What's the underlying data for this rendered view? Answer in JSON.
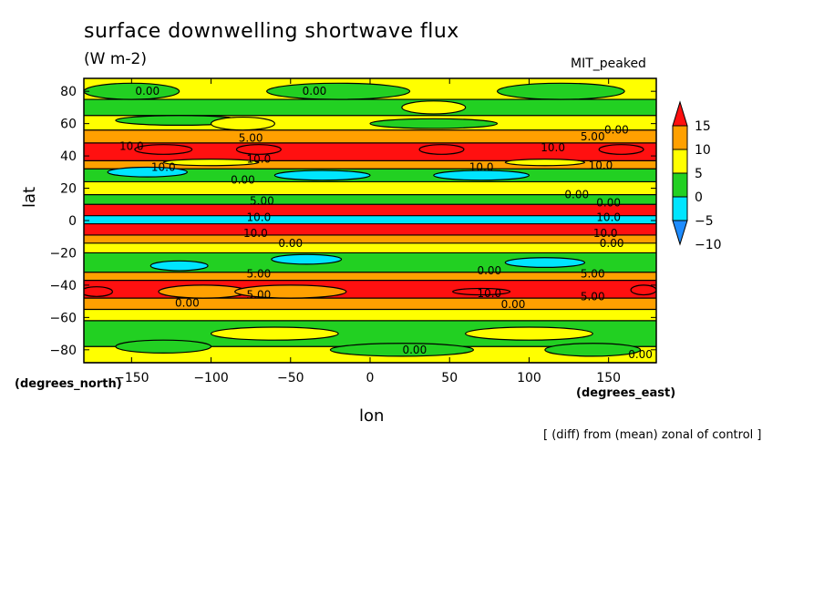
{
  "chart_data": {
    "type": "heatmap",
    "title": "surface downwelling shortwave flux",
    "units": "(W m-2)",
    "model_label": "MIT_peaked",
    "xlabel": "lon",
    "ylabel": "lat",
    "x_unit_label": "(degrees_east)",
    "y_unit_label": "(degrees_north)",
    "footnote": "[ (diff) from (mean) zonal of control ]",
    "xlim": [
      -180,
      180
    ],
    "ylim": [
      -88,
      88
    ],
    "x_ticks": [
      -150,
      -100,
      -50,
      0,
      50,
      100,
      150
    ],
    "y_ticks": [
      -80,
      -60,
      -40,
      -20,
      0,
      20,
      40,
      60,
      80
    ],
    "colorbar": {
      "levels": [
        -10,
        -5,
        0,
        5,
        10,
        15
      ],
      "colors": [
        "#1e8cff",
        "#00e5ff",
        "#22d022",
        "#ffff00",
        "#ffa000",
        "#ff1010"
      ]
    },
    "bands": [
      {
        "lat": [
          75,
          88
        ],
        "value": 0
      },
      {
        "lat": [
          65,
          75
        ],
        "value": -3
      },
      {
        "lat": [
          56,
          65
        ],
        "value": 0
      },
      {
        "lat": [
          48,
          56
        ],
        "value": 5
      },
      {
        "lat": [
          37,
          48
        ],
        "value": 10
      },
      {
        "lat": [
          32,
          37
        ],
        "value": 5
      },
      {
        "lat": [
          24,
          32
        ],
        "value": -3
      },
      {
        "lat": [
          16,
          24
        ],
        "value": 0
      },
      {
        "lat": [
          10,
          16
        ],
        "value": -3
      },
      {
        "lat": [
          3,
          10
        ],
        "value": 15
      },
      {
        "lat": [
          -2,
          3
        ],
        "value": -10
      },
      {
        "lat": [
          -9,
          -2
        ],
        "value": 15
      },
      {
        "lat": [
          -14,
          -9
        ],
        "value": 5
      },
      {
        "lat": [
          -20,
          -14
        ],
        "value": 0
      },
      {
        "lat": [
          -32,
          -20
        ],
        "value": -3
      },
      {
        "lat": [
          -37,
          -32
        ],
        "value": 5
      },
      {
        "lat": [
          -48,
          -37
        ],
        "value": 10
      },
      {
        "lat": [
          -55,
          -48
        ],
        "value": 5
      },
      {
        "lat": [
          -62,
          -55
        ],
        "value": 0
      },
      {
        "lat": [
          -78,
          -62
        ],
        "value": -3
      },
      {
        "lat": [
          -88,
          -78
        ],
        "value": 0
      }
    ],
    "blobs": [
      {
        "lon": -130,
        "lat": 44,
        "rx": 18,
        "ry": 3,
        "value": 15
      },
      {
        "lon": -70,
        "lat": 44,
        "rx": 14,
        "ry": 3,
        "value": 15
      },
      {
        "lon": 45,
        "lat": 44,
        "rx": 14,
        "ry": 3,
        "value": 15
      },
      {
        "lon": 158,
        "lat": 44,
        "rx": 14,
        "ry": 3,
        "value": 15
      },
      {
        "lon": -172,
        "lat": -44,
        "rx": 10,
        "ry": 3,
        "value": 15
      },
      {
        "lon": 70,
        "lat": -44,
        "rx": 18,
        "ry": 2,
        "value": 15
      },
      {
        "lon": 172,
        "lat": -43,
        "rx": 8,
        "ry": 3,
        "value": 15
      },
      {
        "lon": -105,
        "lat": -44,
        "rx": 28,
        "ry": 4,
        "value": 5
      },
      {
        "lon": -50,
        "lat": -44,
        "rx": 35,
        "ry": 4,
        "value": 5
      },
      {
        "lon": -140,
        "lat": 30,
        "rx": 25,
        "ry": 3,
        "value": -10
      },
      {
        "lon": -30,
        "lat": 28,
        "rx": 30,
        "ry": 3,
        "value": -10
      },
      {
        "lon": 70,
        "lat": 28,
        "rx": 30,
        "ry": 3,
        "value": -10
      },
      {
        "lon": 110,
        "lat": 36,
        "rx": 25,
        "ry": 2,
        "value": 0
      },
      {
        "lon": -100,
        "lat": 36,
        "rx": 30,
        "ry": 2,
        "value": 0
      },
      {
        "lon": -120,
        "lat": -28,
        "rx": 18,
        "ry": 3,
        "value": -10
      },
      {
        "lon": -40,
        "lat": -24,
        "rx": 22,
        "ry": 3,
        "value": -10
      },
      {
        "lon": 110,
        "lat": -26,
        "rx": 25,
        "ry": 3,
        "value": -10
      },
      {
        "lon": -150,
        "lat": 80,
        "rx": 30,
        "ry": 5,
        "value": -3
      },
      {
        "lon": -20,
        "lat": 80,
        "rx": 45,
        "ry": 5,
        "value": -3
      },
      {
        "lon": 120,
        "lat": 80,
        "rx": 40,
        "ry": 5,
        "value": -3
      },
      {
        "lon": -120,
        "lat": 62,
        "rx": 40,
        "ry": 3,
        "value": -3
      },
      {
        "lon": 40,
        "lat": 60,
        "rx": 40,
        "ry": 3,
        "value": -3
      },
      {
        "lon": -80,
        "lat": 60,
        "rx": 20,
        "ry": 4,
        "value": 0
      },
      {
        "lon": 40,
        "lat": 70,
        "rx": 20,
        "ry": 4,
        "value": 0
      },
      {
        "lon": -130,
        "lat": -78,
        "rx": 30,
        "ry": 4,
        "value": -3
      },
      {
        "lon": 20,
        "lat": -80,
        "rx": 45,
        "ry": 4,
        "value": -3
      },
      {
        "lon": 140,
        "lat": -80,
        "rx": 30,
        "ry": 4,
        "value": -3
      },
      {
        "lon": 100,
        "lat": -70,
        "rx": 40,
        "ry": 4,
        "value": 0
      },
      {
        "lon": -60,
        "lat": -70,
        "rx": 40,
        "ry": 4,
        "value": 0
      }
    ],
    "contour_labels": [
      {
        "text": "0.00",
        "lon": -140,
        "lat": 80
      },
      {
        "text": "0.00",
        "lon": -35,
        "lat": 80
      },
      {
        "text": "5.00",
        "lon": -75,
        "lat": 51
      },
      {
        "text": "5.00",
        "lon": 140,
        "lat": 52
      },
      {
        "text": "0.00",
        "lon": 155,
        "lat": 56
      },
      {
        "text": "10.0",
        "lon": -150,
        "lat": 46
      },
      {
        "text": "10.0",
        "lon": 115,
        "lat": 45
      },
      {
        "text": "10.0",
        "lon": -130,
        "lat": 33
      },
      {
        "text": "10.0",
        "lon": -70,
        "lat": 38
      },
      {
        "text": "10.0",
        "lon": 70,
        "lat": 33
      },
      {
        "text": "10.0",
        "lon": 145,
        "lat": 34
      },
      {
        "text": "0.00",
        "lon": -80,
        "lat": 25
      },
      {
        "text": "0.00",
        "lon": 130,
        "lat": 16
      },
      {
        "text": "5.00",
        "lon": -68,
        "lat": 12
      },
      {
        "text": "0.00",
        "lon": 150,
        "lat": 11
      },
      {
        "text": "10.0",
        "lon": -70,
        "lat": 2
      },
      {
        "text": "10.0",
        "lon": 150,
        "lat": 2
      },
      {
        "text": "10.0",
        "lon": -72,
        "lat": -8
      },
      {
        "text": "10.0",
        "lon": 148,
        "lat": -8
      },
      {
        "text": "0.00",
        "lon": -50,
        "lat": -14
      },
      {
        "text": "0.00",
        "lon": 152,
        "lat": -14
      },
      {
        "text": "0.00",
        "lon": 75,
        "lat": -31
      },
      {
        "text": "5.00",
        "lon": -70,
        "lat": -33
      },
      {
        "text": "5.00",
        "lon": 140,
        "lat": -33
      },
      {
        "text": "10.0",
        "lon": 75,
        "lat": -45
      },
      {
        "text": "5.00",
        "lon": -70,
        "lat": -46
      },
      {
        "text": "5.00",
        "lon": 140,
        "lat": -47
      },
      {
        "text": "0.00",
        "lon": -115,
        "lat": -51
      },
      {
        "text": "0.00",
        "lon": 90,
        "lat": -52
      },
      {
        "text": "0.00",
        "lon": 28,
        "lat": -80
      },
      {
        "text": "0.00",
        "lon": 170,
        "lat": -83
      }
    ]
  }
}
